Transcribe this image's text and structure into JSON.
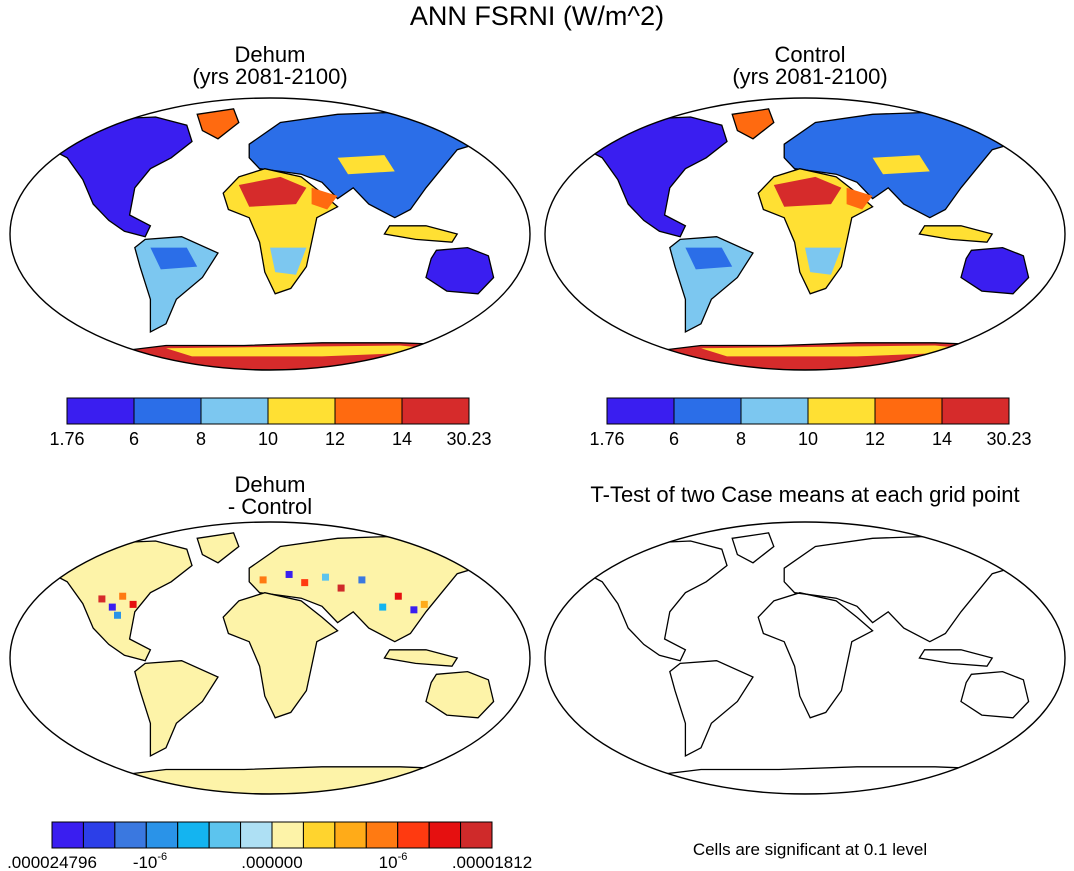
{
  "figure_title": "ANN FSRNI (W/m^2)",
  "panels": [
    {
      "id": "dehum",
      "title_lines": [
        "Dehum",
        "(yrs 2081-2100)"
      ]
    },
    {
      "id": "control",
      "title_lines": [
        "Control",
        "(yrs 2081-2100)"
      ]
    },
    {
      "id": "difference",
      "title_lines": [
        "Dehum",
        "- Control"
      ]
    },
    {
      "id": "ttest",
      "title_lines": [
        "T-Test of two Case means at each grid point"
      ],
      "note": "Cells are significant at 0.1 level"
    }
  ],
  "colorbar_main": {
    "colors": [
      "#3a1ef0",
      "#2b6ee8",
      "#7cc7f0",
      "#ffe033",
      "#ff6a10",
      "#d62b2b"
    ],
    "tick_labels": [
      "1.76",
      "6",
      "8",
      "10",
      "12",
      "14",
      "30.23"
    ]
  },
  "colorbar_diff": {
    "colors": [
      "#3a1ef0",
      "#2c3fe8",
      "#3a78e0",
      "#2a93e8",
      "#14b4f0",
      "#5cc4ee",
      "#aee0f4",
      "#fdf3a8",
      "#ffd42e",
      "#ffab18",
      "#ff7a12",
      "#ff3a10",
      "#e51010",
      "#cf2a2a"
    ],
    "tick_labels": [
      ".000024796",
      "-10",
      ".000000",
      "10",
      ".00001812"
    ],
    "exponent": "-6"
  },
  "map_colors": {
    "ocean": "#ffffff",
    "outline": "#000000",
    "diff_land": "#fdf3a8"
  }
}
